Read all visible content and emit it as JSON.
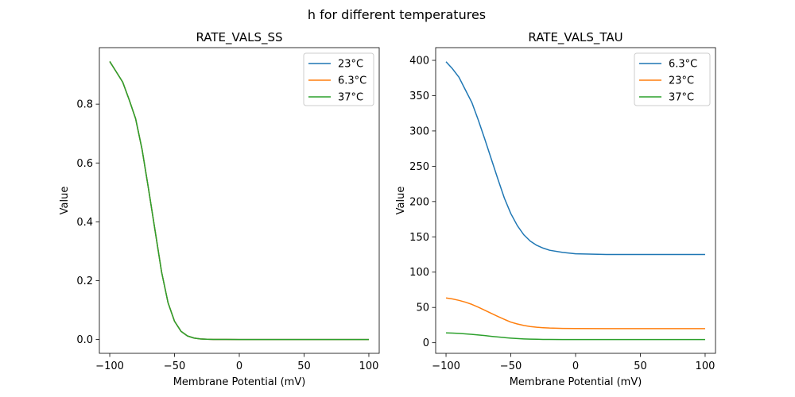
{
  "suptitle": "h for different temperatures",
  "chart_data": [
    {
      "type": "line",
      "title": "RATE_VALS_SS",
      "xlabel": "Membrane Potential (mV)",
      "ylabel": "Value",
      "xlim": [
        -108,
        108
      ],
      "ylim": [
        -0.047,
        0.992
      ],
      "xticks": [
        -100,
        -50,
        0,
        50,
        100
      ],
      "xtick_labels": [
        "−100",
        "−50",
        "0",
        "50",
        "100"
      ],
      "yticks": [
        0.0,
        0.2,
        0.4,
        0.6,
        0.8
      ],
      "ytick_labels": [
        "0.0",
        "0.2",
        "0.4",
        "0.6",
        "0.8"
      ],
      "grid": false,
      "legend_position": "top-right",
      "x": [
        -100,
        -95,
        -90,
        -85,
        -80,
        -75,
        -70,
        -65,
        -60,
        -55,
        -50,
        -45,
        -40,
        -35,
        -30,
        -25,
        -20,
        -10,
        0,
        25,
        50,
        75,
        100
      ],
      "series": [
        {
          "name": "23°C",
          "color": "#1f77b4",
          "values": [
            0.945,
            0.91,
            0.875,
            0.815,
            0.75,
            0.645,
            0.51,
            0.37,
            0.23,
            0.125,
            0.062,
            0.028,
            0.012,
            0.005,
            0.002,
            0.0008,
            0.0003,
            0.0001,
            0.0,
            0.0,
            0.0,
            0.0,
            0.0
          ]
        },
        {
          "name": "6.3°C",
          "color": "#ff7f0e",
          "values": [
            0.945,
            0.91,
            0.875,
            0.815,
            0.75,
            0.645,
            0.51,
            0.37,
            0.23,
            0.125,
            0.062,
            0.028,
            0.012,
            0.005,
            0.002,
            0.0008,
            0.0003,
            0.0001,
            0.0,
            0.0,
            0.0,
            0.0,
            0.0
          ]
        },
        {
          "name": "37°C",
          "color": "#2ca02c",
          "values": [
            0.945,
            0.91,
            0.875,
            0.815,
            0.75,
            0.645,
            0.51,
            0.37,
            0.23,
            0.125,
            0.062,
            0.028,
            0.012,
            0.005,
            0.002,
            0.0008,
            0.0003,
            0.0001,
            0.0,
            0.0,
            0.0,
            0.0,
            0.0
          ]
        }
      ]
    },
    {
      "type": "line",
      "title": "RATE_VALS_TAU",
      "xlabel": "Membrane Potential (mV)",
      "ylabel": "Value",
      "xlim": [
        -108,
        108
      ],
      "ylim": [
        -15,
        418
      ],
      "xticks": [
        -100,
        -50,
        0,
        50,
        100
      ],
      "xtick_labels": [
        "−100",
        "−50",
        "0",
        "50",
        "100"
      ],
      "yticks": [
        0,
        50,
        100,
        150,
        200,
        250,
        300,
        350,
        400
      ],
      "ytick_labels": [
        "0",
        "50",
        "100",
        "150",
        "200",
        "250",
        "300",
        "350",
        "400"
      ],
      "grid": false,
      "legend_position": "top-right",
      "x": [
        -100,
        -95,
        -90,
        -85,
        -80,
        -75,
        -70,
        -65,
        -60,
        -55,
        -50,
        -45,
        -40,
        -35,
        -30,
        -25,
        -20,
        -10,
        0,
        25,
        50,
        75,
        100
      ],
      "series": [
        {
          "name": "6.3°C",
          "color": "#1f77b4",
          "values": [
            398,
            388,
            376,
            358,
            340,
            315,
            288,
            260,
            232,
            205,
            183,
            166,
            153,
            144,
            138,
            134,
            131,
            128,
            126,
            125,
            125,
            125,
            125
          ]
        },
        {
          "name": "23°C",
          "color": "#ff7f0e",
          "values": [
            63.5,
            62,
            60,
            57.5,
            54.3,
            50.3,
            46,
            41.6,
            37.2,
            33.1,
            29.2,
            26.6,
            24.5,
            23,
            22,
            21.3,
            20.8,
            20.3,
            20.1,
            20,
            20,
            20,
            20
          ]
        },
        {
          "name": "37°C",
          "color": "#2ca02c",
          "values": [
            14,
            13.7,
            13.2,
            12.6,
            11.9,
            11,
            10.1,
            9.1,
            8.2,
            7.3,
            6.5,
            5.9,
            5.4,
            5.1,
            4.9,
            4.75,
            4.65,
            4.55,
            4.5,
            4.5,
            4.5,
            4.5,
            4.5
          ]
        }
      ]
    }
  ]
}
